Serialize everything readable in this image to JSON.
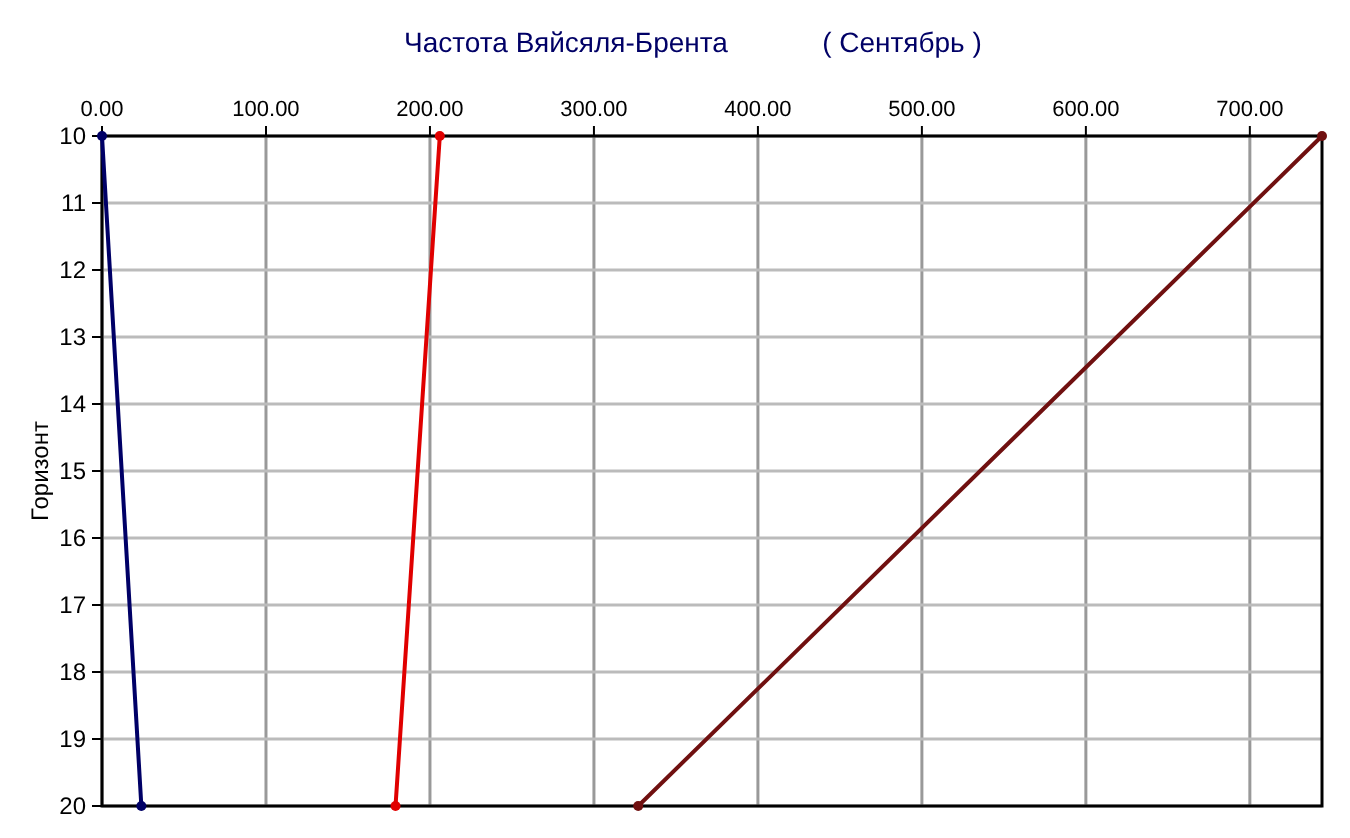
{
  "chart_data": {
    "type": "line",
    "title": "Частота Вяйсяля-Брента",
    "subtitle": "( Сентябрь )",
    "ylabel": "Горизонт",
    "series": [
      {
        "color": "#000066",
        "x": [
          0,
          24
        ],
        "values": [
          10,
          20
        ]
      },
      {
        "color": "#e00000",
        "x": [
          206,
          179
        ],
        "values": [
          10,
          20
        ]
      },
      {
        "color": "#701010",
        "x": [
          744,
          327
        ],
        "values": [
          10,
          20
        ]
      }
    ],
    "xlim": [
      0,
      744
    ],
    "xticks": [
      {
        "value": 0,
        "label": "0.00"
      },
      {
        "value": 100,
        "label": "100.00"
      },
      {
        "value": 200,
        "label": "200.00"
      },
      {
        "value": 300,
        "label": "300.00"
      },
      {
        "value": 400,
        "label": "400.00"
      },
      {
        "value": 500,
        "label": "500.00"
      },
      {
        "value": 600,
        "label": "600.00"
      },
      {
        "value": 700,
        "label": "700.00"
      }
    ],
    "ylim": [
      20,
      10
    ],
    "yticks": [
      10,
      11,
      12,
      13,
      14,
      15,
      16,
      17,
      18,
      19,
      20
    ],
    "grid": true,
    "marker": "circle",
    "line_style": "solid"
  }
}
